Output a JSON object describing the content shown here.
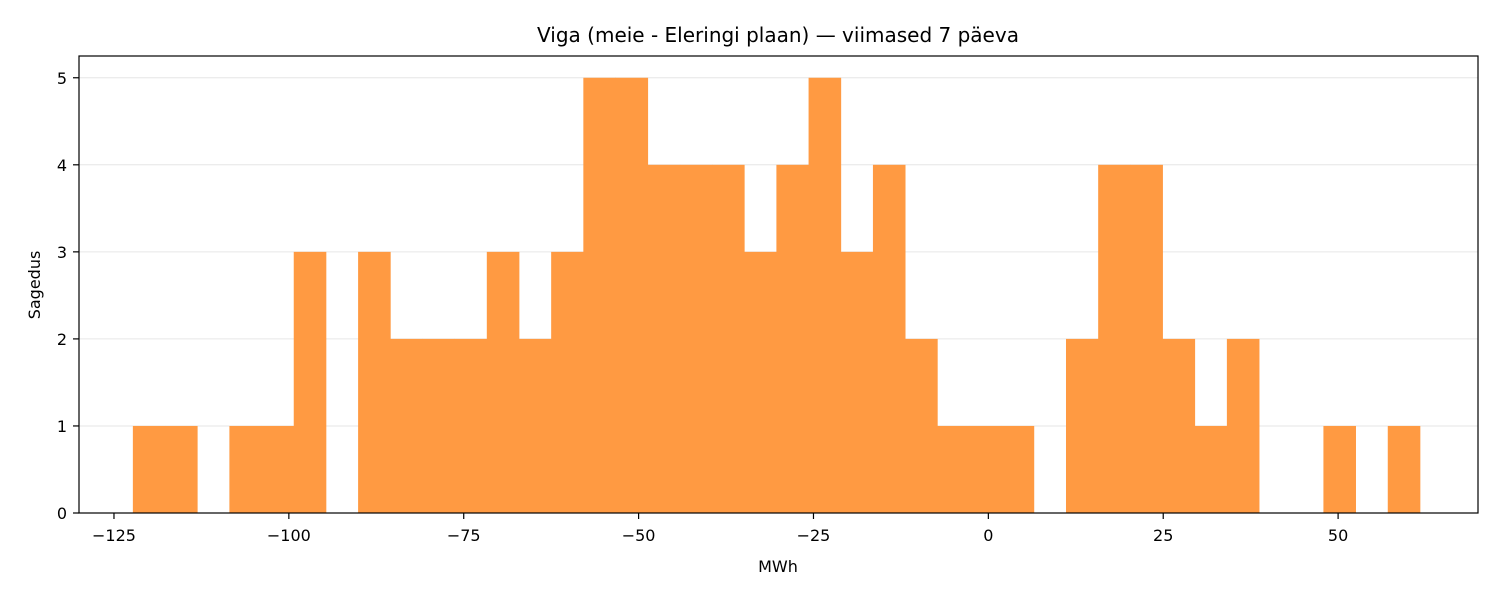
{
  "chart_data": {
    "type": "bar",
    "subtype": "histogram",
    "title": "Viga (meie - Eleringi plaan) — viimased 7 päeva",
    "xlabel": "MWh",
    "ylabel": "Sagedus",
    "xlim": [
      -130,
      70
    ],
    "ylim": [
      0,
      5.25
    ],
    "x_ticks": [
      -125,
      -100,
      -75,
      -50,
      -25,
      0,
      25,
      50
    ],
    "x_tick_labels": [
      "−125",
      "−100",
      "−75",
      "−50",
      "−25",
      "0",
      "25",
      "50"
    ],
    "y_ticks": [
      0,
      1,
      2,
      3,
      4,
      5
    ],
    "y_tick_labels": [
      "0",
      "1",
      "2",
      "3",
      "4",
      "5"
    ],
    "grid": "y",
    "bar_color": "#ff9a42",
    "bins": [
      {
        "x0": -122.3,
        "x1": -117.7,
        "count": 1
      },
      {
        "x0": -117.7,
        "x1": -113.1,
        "count": 1
      },
      {
        "x0": -113.1,
        "x1": -108.5,
        "count": 0
      },
      {
        "x0": -108.5,
        "x1": -103.9,
        "count": 1
      },
      {
        "x0": -103.9,
        "x1": -99.3,
        "count": 1
      },
      {
        "x0": -99.3,
        "x1": -94.7,
        "count": 3
      },
      {
        "x0": -94.7,
        "x1": -90.1,
        "count": 0
      },
      {
        "x0": -90.1,
        "x1": -85.5,
        "count": 3
      },
      {
        "x0": -85.5,
        "x1": -80.9,
        "count": 2
      },
      {
        "x0": -80.9,
        "x1": -76.3,
        "count": 2
      },
      {
        "x0": -76.3,
        "x1": -71.7,
        "count": 2
      },
      {
        "x0": -71.7,
        "x1": -67.1,
        "count": 3
      },
      {
        "x0": -67.1,
        "x1": -62.5,
        "count": 2
      },
      {
        "x0": -62.5,
        "x1": -57.9,
        "count": 3
      },
      {
        "x0": -57.9,
        "x1": -53.3,
        "count": 5
      },
      {
        "x0": -53.3,
        "x1": -48.7,
        "count": 5
      },
      {
        "x0": -48.7,
        "x1": -44.1,
        "count": 4
      },
      {
        "x0": -44.1,
        "x1": -39.5,
        "count": 4
      },
      {
        "x0": -39.5,
        "x1": -34.9,
        "count": 4
      },
      {
        "x0": -34.9,
        "x1": -30.3,
        "count": 3
      },
      {
        "x0": -30.3,
        "x1": -25.7,
        "count": 4
      },
      {
        "x0": -25.7,
        "x1": -21.1,
        "count": 5
      },
      {
        "x0": -21.1,
        "x1": -16.5,
        "count": 3
      },
      {
        "x0": -16.5,
        "x1": -11.9,
        "count": 4
      },
      {
        "x0": -11.9,
        "x1": -7.3,
        "count": 2
      },
      {
        "x0": -7.3,
        "x1": -2.7,
        "count": 1
      },
      {
        "x0": -2.7,
        "x1": 1.9,
        "count": 1
      },
      {
        "x0": 1.9,
        "x1": 6.5,
        "count": 1
      },
      {
        "x0": 6.5,
        "x1": 11.1,
        "count": 0
      },
      {
        "x0": 11.1,
        "x1": 15.7,
        "count": 2
      },
      {
        "x0": 15.7,
        "x1": 20.3,
        "count": 4
      },
      {
        "x0": 20.3,
        "x1": 24.9,
        "count": 4
      },
      {
        "x0": 24.9,
        "x1": 29.5,
        "count": 2
      },
      {
        "x0": 29.5,
        "x1": 34.1,
        "count": 1
      },
      {
        "x0": 34.1,
        "x1": 38.7,
        "count": 2
      },
      {
        "x0": 38.7,
        "x1": 43.3,
        "count": 0
      },
      {
        "x0": 43.3,
        "x1": 47.9,
        "count": 0
      },
      {
        "x0": 47.9,
        "x1": 52.5,
        "count": 1
      },
      {
        "x0": 52.5,
        "x1": 57.1,
        "count": 0
      },
      {
        "x0": 57.1,
        "x1": 61.7,
        "count": 1
      }
    ]
  }
}
